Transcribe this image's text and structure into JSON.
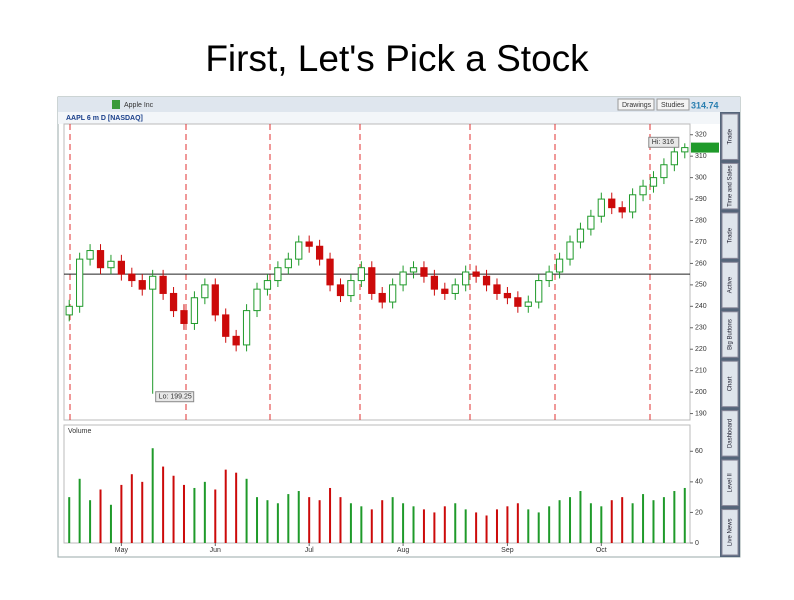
{
  "slide_title": "First, Let's Pick a Stock",
  "toolbar": {
    "company": "Apple Inc",
    "drawings": "Drawings",
    "studies": "Studies",
    "last": "314.74"
  },
  "side_tabs": [
    "Trade",
    "Time and Sales",
    "Trade",
    "Active",
    "Big Buttons",
    "Chart",
    "Dashboard",
    "Level II",
    "Live News"
  ],
  "chart_data": {
    "type": "candlestick",
    "title": "AAPL 6 m D [NASDAQ]",
    "volume_title": "Volume",
    "open": [
      236,
      240,
      262,
      266,
      258,
      261,
      255,
      252,
      248,
      254,
      246,
      238,
      232,
      244,
      250,
      236,
      226,
      222,
      238,
      248,
      252,
      258,
      262,
      270,
      268,
      262,
      250,
      245,
      252,
      258,
      246,
      242,
      250,
      256,
      258,
      254,
      248,
      246,
      250,
      256,
      254,
      250,
      246,
      244,
      240,
      242,
      252,
      256,
      262,
      270,
      276,
      282,
      290,
      286,
      284,
      292,
      296,
      300,
      306,
      312
    ],
    "high": [
      243,
      265,
      269,
      269,
      264,
      264,
      258,
      255,
      257,
      257,
      249,
      241,
      247,
      253,
      253,
      239,
      229,
      241,
      251,
      255,
      261,
      265,
      273,
      273,
      271,
      265,
      253,
      255,
      261,
      261,
      249,
      253,
      259,
      261,
      261,
      257,
      251,
      253,
      259,
      259,
      257,
      253,
      249,
      247,
      245,
      255,
      259,
      265,
      273,
      279,
      285,
      293,
      293,
      289,
      295,
      299,
      303,
      309,
      315,
      316
    ],
    "low": [
      233,
      237,
      259,
      255,
      255,
      252,
      249,
      245,
      199.25,
      243,
      235,
      229,
      229,
      241,
      233,
      223,
      219,
      219,
      235,
      245,
      249,
      255,
      259,
      265,
      259,
      247,
      242,
      242,
      249,
      243,
      239,
      239,
      247,
      253,
      251,
      245,
      243,
      243,
      247,
      251,
      247,
      243,
      241,
      237,
      237,
      239,
      249,
      253,
      259,
      267,
      273,
      279,
      283,
      281,
      281,
      289,
      293,
      297,
      303,
      309
    ],
    "close": [
      240,
      262,
      266,
      258,
      261,
      255,
      252,
      248,
      254,
      246,
      238,
      232,
      244,
      250,
      236,
      226,
      222,
      238,
      248,
      252,
      258,
      262,
      270,
      268,
      262,
      250,
      245,
      252,
      258,
      246,
      242,
      250,
      256,
      258,
      254,
      248,
      246,
      250,
      256,
      254,
      250,
      246,
      244,
      240,
      242,
      252,
      256,
      262,
      270,
      276,
      282,
      290,
      286,
      284,
      292,
      296,
      300,
      306,
      312,
      314
    ],
    "volume": [
      30,
      42,
      28,
      35,
      25,
      38,
      45,
      40,
      62,
      50,
      44,
      38,
      36,
      40,
      35,
      48,
      46,
      42,
      30,
      28,
      26,
      32,
      34,
      30,
      28,
      36,
      30,
      26,
      24,
      22,
      28,
      30,
      26,
      24,
      22,
      20,
      24,
      26,
      22,
      20,
      18,
      22,
      24,
      26,
      22,
      20,
      24,
      28,
      30,
      34,
      26,
      24,
      28,
      30,
      26,
      32,
      28,
      30,
      34,
      36
    ],
    "up_color": "#1f9a2a",
    "down_color": "#cc0a0a",
    "ylim": [
      187,
      325
    ],
    "yticks": [
      190,
      200,
      210,
      220,
      230,
      240,
      250,
      260,
      270,
      280,
      290,
      300,
      310,
      320
    ],
    "volume_ylim": [
      0,
      70
    ],
    "volume_yticks": [
      0,
      20,
      40,
      60
    ],
    "xticks": [
      {
        "value": 5,
        "label": "May"
      },
      {
        "value": 14,
        "label": "Jun"
      },
      {
        "value": 23,
        "label": "Jul"
      },
      {
        "value": 32,
        "label": "Aug"
      },
      {
        "value": 42,
        "label": "Sep"
      },
      {
        "value": 51,
        "label": "Oct"
      }
    ],
    "reference_line": 255,
    "annotations": {
      "high": "Hi: 316",
      "low": "Lo: 199.25"
    }
  }
}
